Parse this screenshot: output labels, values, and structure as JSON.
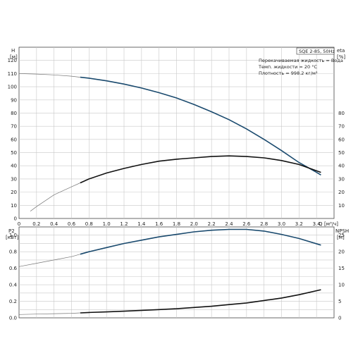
{
  "chart_data": [
    {
      "type": "line",
      "panel": "top",
      "x_axis": {
        "label": "Q",
        "unit": "[м³/ч]",
        "range": [
          0,
          3.6
        ],
        "ticks": [
          "0",
          "0.2",
          "0.4",
          "0.6",
          "0.8",
          "1.0",
          "1.2",
          "1.4",
          "1.6",
          "1.8",
          "2.0",
          "2.2",
          "2.4",
          "2.6",
          "2.8",
          "3.0",
          "3.2",
          "3.4"
        ]
      },
      "y_left": {
        "label": "H",
        "unit": "[м]",
        "range": [
          0,
          130
        ],
        "ticks": [
          "0",
          "10",
          "20",
          "30",
          "40",
          "50",
          "60",
          "70",
          "80",
          "90",
          "100",
          "110",
          "120"
        ]
      },
      "y_right": {
        "label": "eta",
        "unit": "[%]",
        "range": [
          0,
          130
        ],
        "ticks": [
          "10",
          "20",
          "30",
          "40",
          "50",
          "60",
          "70",
          "80"
        ]
      },
      "legend_box": {
        "lines": [
          "SQE 2-85, 50Hz",
          "Перекачиваемая жидкость = Вода",
          "Темп. жидкости = 20 °C",
          "Плотность = 998.2 кг/м³"
        ],
        "placement": "top-right"
      },
      "grid": true,
      "series": [
        {
          "axis": "left",
          "color": "#1a4a6e",
          "x": [
            0,
            0.2,
            0.4,
            0.6,
            0.7,
            0.8,
            1.0,
            1.2,
            1.4,
            1.6,
            1.8,
            2.0,
            2.2,
            2.4,
            2.6,
            2.8,
            3.0,
            3.2,
            3.4,
            3.45
          ],
          "y": [
            110,
            109.6,
            109,
            108,
            107.2,
            106.5,
            104.5,
            102,
            99,
            95.5,
            91.5,
            86.5,
            81,
            75,
            68,
            60,
            51.5,
            42.5,
            35,
            33
          ]
        },
        {
          "axis": "right",
          "color": "#111111",
          "x": [
            0.13,
            0.2,
            0.4,
            0.6,
            0.7,
            0.8,
            1.0,
            1.2,
            1.4,
            1.6,
            1.8,
            2.0,
            2.2,
            2.4,
            2.6,
            2.8,
            3.0,
            3.2,
            3.45
          ],
          "y": [
            5.5,
            9,
            18,
            24,
            27,
            30,
            34.5,
            38,
            41,
            43.5,
            45,
            46,
            47,
            47.5,
            47,
            46,
            44,
            41,
            35
          ]
        }
      ]
    },
    {
      "type": "line",
      "panel": "bottom",
      "x_axis": {
        "range": [
          0,
          3.6
        ]
      },
      "y_left": {
        "label": "P2",
        "unit": "[кВт]",
        "range": [
          0,
          1.1
        ],
        "ticks": [
          "0.0",
          "0.2",
          "0.4",
          "0.6",
          "0.8",
          "1.0"
        ]
      },
      "y_right": {
        "label": "NPSH",
        "unit": "[м]",
        "range": [
          0,
          27.5
        ],
        "ticks": [
          "0",
          "5",
          "10",
          "15",
          "20",
          "25"
        ]
      },
      "grid": true,
      "series": [
        {
          "axis": "left",
          "color": "#1a4a6e",
          "x": [
            0,
            0.2,
            0.4,
            0.6,
            0.7,
            0.8,
            1.0,
            1.2,
            1.4,
            1.6,
            1.8,
            2.0,
            2.2,
            2.4,
            2.6,
            2.8,
            3.0,
            3.2,
            3.45
          ],
          "y": [
            0.62,
            0.66,
            0.7,
            0.74,
            0.77,
            0.8,
            0.85,
            0.9,
            0.94,
            0.98,
            1.01,
            1.04,
            1.06,
            1.07,
            1.07,
            1.05,
            1.01,
            0.96,
            0.88
          ]
        },
        {
          "axis": "left",
          "color": "#111111",
          "x": [
            0,
            0.2,
            0.4,
            0.6,
            0.7,
            0.8,
            1.0,
            1.2,
            1.4,
            1.6,
            1.8,
            2.0,
            2.2,
            2.4,
            2.6,
            2.8,
            3.0,
            3.2,
            3.45
          ],
          "y": [
            0.04,
            0.045,
            0.05,
            0.055,
            0.06,
            0.065,
            0.072,
            0.08,
            0.09,
            0.1,
            0.11,
            0.125,
            0.14,
            0.16,
            0.18,
            0.21,
            0.24,
            0.28,
            0.34
          ]
        }
      ]
    }
  ]
}
